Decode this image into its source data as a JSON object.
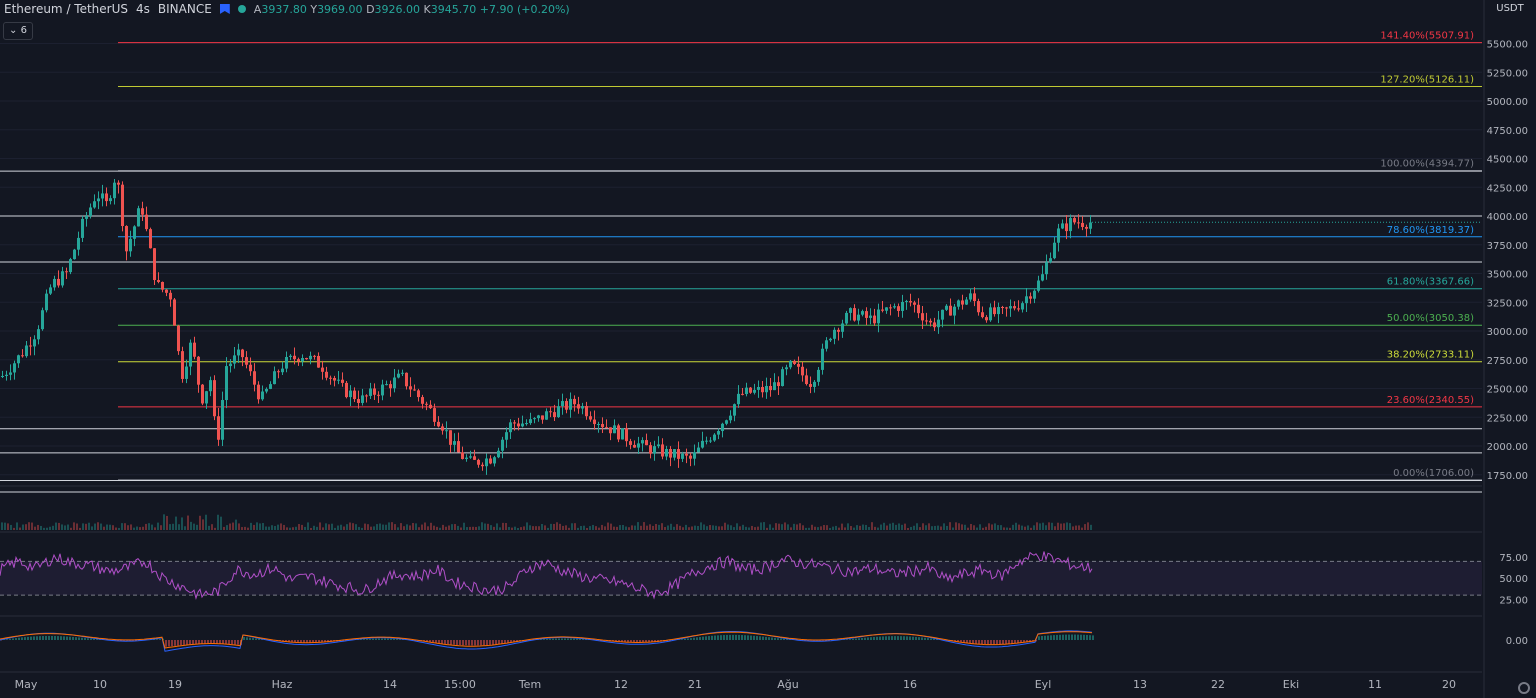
{
  "header": {
    "symbol": "Ethereum / TetherUS",
    "interval": "4s",
    "exchange": "BINANCE",
    "open_label": "A",
    "open": "3937.80",
    "high_label": "Y",
    "high": "3969.00",
    "low_label": "D",
    "low": "3926.00",
    "close_label": "K",
    "close": "3945.70",
    "change": "+7.90 (+0.20%)",
    "indicator_count": "6"
  },
  "chart_data": {
    "type": "candlestick",
    "currency": "USDT",
    "last_price": 3945.7,
    "last_price_label": "3945.70",
    "ylim": [
      1600,
      5600
    ],
    "y_ticks": [
      1750,
      2000,
      2250,
      2500,
      2750,
      3000,
      3250,
      3500,
      3750,
      4000,
      4250,
      4500,
      4750,
      5000,
      5250,
      5500
    ],
    "y_tick_labels": [
      "1750.00",
      "2000.00",
      "2250.00",
      "2500.00",
      "2750.00",
      "3000.00",
      "3250.00",
      "3500.00",
      "3750.00",
      "4000.00",
      "4250.00",
      "4500.00",
      "4750.00",
      "5000.00",
      "5250.00",
      "5500.00"
    ],
    "x_ticks": [
      "May",
      "10",
      "19",
      "Haz",
      "14",
      "15:00",
      "Tem",
      "12",
      "21",
      "Ağu",
      "16",
      "Eyl",
      "13",
      "22",
      "Eki",
      "11",
      "20"
    ],
    "fib_levels": [
      {
        "label": "141.40%(5507.91)",
        "value": 5507.91,
        "color": "#f23645"
      },
      {
        "label": "127.20%(5126.11)",
        "value": 5126.11,
        "color": "#c0ca33"
      },
      {
        "label": "100.00%(4394.77)",
        "value": 4394.77,
        "color": "#787b86"
      },
      {
        "label": "78.60%(3819.37)",
        "value": 3819.37,
        "color": "#2196f3"
      },
      {
        "label": "61.80%(3367.66)",
        "value": 3367.66,
        "color": "#26a69a"
      },
      {
        "label": "50.00%(3050.38)",
        "value": 3050.38,
        "color": "#4caf50"
      },
      {
        "label": "38.20%(2733.11)",
        "value": 2733.11,
        "color": "#cddc39"
      },
      {
        "label": "23.60%(2340.55)",
        "value": 2340.55,
        "color": "#f23645"
      },
      {
        "label": "0.00%(1706.00)",
        "value": 1706.0,
        "color": "#787b86"
      }
    ],
    "horizontal_levels": [
      {
        "label": "4390.00",
        "value": 4390
      },
      {
        "label": "4000.00",
        "value": 4000
      },
      {
        "label": "3600.00",
        "value": 3600
      },
      {
        "label": "2150.00",
        "value": 2150
      },
      {
        "label": "1940.00",
        "value": 1940
      },
      {
        "label": "1700.00",
        "value": 1700
      },
      {
        "label": "1600.00",
        "value": 1600
      }
    ],
    "price_path": [
      [
        0,
        2600
      ],
      [
        0.02,
        2800
      ],
      [
        0.035,
        3000
      ],
      [
        0.05,
        3400
      ],
      [
        0.065,
        3500
      ],
      [
        0.08,
        3900
      ],
      [
        0.095,
        4200
      ],
      [
        0.105,
        4100
      ],
      [
        0.115,
        4380
      ],
      [
        0.125,
        3700
      ],
      [
        0.14,
        4100
      ],
      [
        0.155,
        3400
      ],
      [
        0.17,
        3300
      ],
      [
        0.18,
        2600
      ],
      [
        0.19,
        2900
      ],
      [
        0.2,
        2400
      ],
      [
        0.21,
        2600
      ],
      [
        0.215,
        1950
      ],
      [
        0.225,
        2700
      ],
      [
        0.24,
        2800
      ],
      [
        0.26,
        2400
      ],
      [
        0.28,
        2700
      ],
      [
        0.3,
        2800
      ],
      [
        0.32,
        2700
      ],
      [
        0.34,
        2500
      ],
      [
        0.36,
        2400
      ],
      [
        0.38,
        2500
      ],
      [
        0.4,
        2600
      ],
      [
        0.42,
        2400
      ],
      [
        0.44,
        2200
      ],
      [
        0.455,
        1950
      ],
      [
        0.47,
        1850
      ],
      [
        0.49,
        1900
      ],
      [
        0.51,
        2200
      ],
      [
        0.53,
        2200
      ],
      [
        0.55,
        2300
      ],
      [
        0.575,
        2380
      ],
      [
        0.6,
        2200
      ],
      [
        0.62,
        2100
      ],
      [
        0.64,
        2000
      ],
      [
        0.66,
        1950
      ],
      [
        0.69,
        1880
      ],
      [
        0.7,
        2000
      ],
      [
        0.72,
        2200
      ],
      [
        0.74,
        2450
      ],
      [
        0.77,
        2500
      ],
      [
        0.79,
        2700
      ],
      [
        0.81,
        2550
      ],
      [
        0.83,
        3000
      ],
      [
        0.85,
        3150
      ],
      [
        0.87,
        3100
      ],
      [
        0.89,
        3200
      ],
      [
        0.91,
        3250
      ],
      [
        0.93,
        3050
      ],
      [
        0.95,
        3200
      ],
      [
        0.97,
        3300
      ],
      [
        0.98,
        3150
      ],
      [
        1.0,
        3150
      ],
      [
        1.02,
        3250
      ],
      [
        1.04,
        3450
      ],
      [
        1.055,
        3850
      ],
      [
        1.07,
        3950
      ],
      [
        1.09,
        3946
      ]
    ],
    "rsi": {
      "type": "line",
      "color": "#b150c9",
      "levels": [
        75,
        50,
        25
      ],
      "level_labels": [
        "75.00",
        "50.00",
        "25.00"
      ],
      "values": [
        60,
        70,
        62,
        75,
        68,
        65,
        58,
        62,
        70,
        50,
        40,
        30,
        35,
        60,
        55,
        62,
        48,
        52,
        45,
        40,
        35,
        48,
        55,
        52,
        60,
        45,
        40,
        35,
        40,
        62,
        68,
        58,
        52,
        48,
        45,
        38,
        32,
        40,
        55,
        65,
        70,
        60,
        62,
        72,
        68,
        65,
        60,
        58,
        62,
        55,
        58,
        62,
        48,
        55,
        60,
        52,
        70,
        78,
        72,
        65,
        62
      ]
    },
    "macd": {
      "type": "line",
      "zero_label": "0.00",
      "macd_color": "#2962ff",
      "signal_color": "#ff6d00"
    }
  }
}
